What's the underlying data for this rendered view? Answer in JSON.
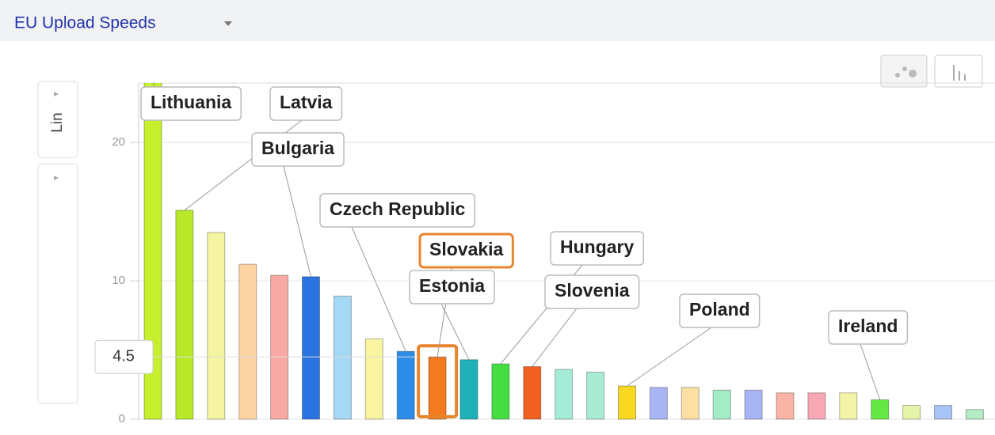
{
  "chart_data": {
    "type": "bar",
    "title": "EU Upload Speeds",
    "scale": "Lin",
    "categories": [
      "Lithuania",
      "Latvia",
      null,
      null,
      null,
      "Bulgaria",
      null,
      null,
      "Czech Republic",
      "Slovakia",
      "Estonia",
      "Hungary",
      "Slovenia",
      null,
      null,
      "Poland",
      null,
      null,
      null,
      null,
      null,
      null,
      null,
      "Ireland",
      null,
      null,
      null
    ],
    "values": [
      26,
      15.1,
      13.5,
      11.2,
      10.4,
      10.3,
      8.9,
      5.8,
      4.9,
      4.5,
      4.3,
      4.0,
      3.8,
      3.6,
      3.4,
      2.4,
      2.3,
      2.3,
      2.1,
      2.1,
      1.9,
      1.9,
      1.9,
      1.4,
      1.0,
      1.0,
      0.7
    ],
    "value_labels": [
      null,
      null,
      null,
      null,
      null,
      null,
      null,
      null,
      null,
      "4.5",
      null,
      null,
      null,
      null,
      null,
      null,
      null,
      null,
      null,
      null,
      null,
      null,
      null,
      null,
      null,
      null,
      null
    ],
    "colors": [
      "#c6ef2e",
      "#b9e82a",
      "#f4f4a2",
      "#fcd4a4",
      "#f9a9a4",
      "#2a73e0",
      "#a4d8f4",
      "#f8f4a0",
      "#2c8ce8",
      "#f47a20",
      "#1fb0b8",
      "#44dd44",
      "#f06020",
      "#a4ecd8",
      "#a8ecd4",
      "#f8d820",
      "#a8b4f4",
      "#fce0a4",
      "#a4ecc4",
      "#a8b4f4",
      "#f8b4a4",
      "#f8a8b4",
      "#f4f4a8",
      "#66e844",
      "#e4f4a8",
      "#a8c4f4",
      "#b4ecc4"
    ],
    "ylim": [
      0,
      24.3
    ],
    "yticks": [
      0,
      10,
      20
    ],
    "grid": true
  }
}
